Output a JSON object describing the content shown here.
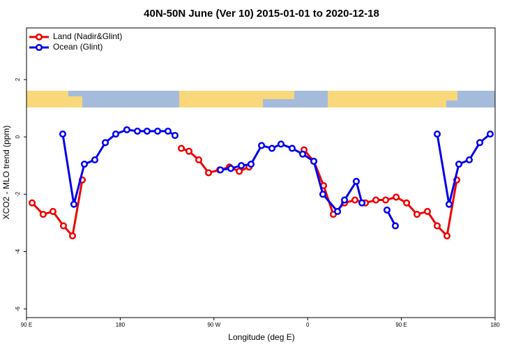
{
  "chart_data": {
    "type": "line",
    "title": "40N-50N June (Ver 10)   2015-01-01 to 2020-12-18",
    "x_label": "Longitude (deg E)",
    "y_label": "XCO2 - MLO trend (ppm)",
    "xlim": [
      90,
      540
    ],
    "xticks": [
      {
        "value": 90,
        "label": "90 E"
      },
      {
        "value": 180,
        "label": "180"
      },
      {
        "value": 270,
        "label": "90 W"
      },
      {
        "value": 360,
        "label": "0"
      },
      {
        "value": 450,
        "label": "90 E"
      },
      {
        "value": 540,
        "label": "180"
      }
    ],
    "ylim": [
      -6.3,
      3.8
    ],
    "yticks": [
      -6,
      -4,
      -2,
      0,
      2
    ],
    "legend": "top-left",
    "series": [
      {
        "name": "Land (Nadir&Glint)",
        "color": "#ee0000",
        "x": [
          95.4,
          106,
          115.4,
          125.5,
          134.2,
          143.6,
          190,
          238.7,
          246,
          255.4,
          264.8,
          275.5,
          284.9,
          294.3,
          303.7,
          330,
          356.5,
          365.9,
          375.3,
          384.6,
          395.4,
          405.4,
          415.5,
          425.5,
          434.9,
          445,
          455,
          465,
          475,
          484.4,
          493.8,
          503.2
        ],
        "values": [
          -2.3,
          -2.7,
          -2.6,
          -3.1,
          -3.45,
          -1.5,
          null,
          -0.4,
          -0.5,
          -0.8,
          -1.25,
          -1.15,
          -1.05,
          -1.2,
          -1.05,
          null,
          -0.45,
          -0.85,
          -1.7,
          -2.7,
          -2.3,
          -2.2,
          -2.3,
          -2.2,
          -2.2,
          -2.1,
          -2.3,
          -2.7,
          -2.6,
          -3.1,
          -3.45,
          -1.5
        ]
      },
      {
        "name": "Ocean (Glint)",
        "color": "#0000ee",
        "x": [
          124.8,
          135.5,
          145.6,
          155.6,
          165.7,
          175.7,
          186.4,
          196.5,
          205.8,
          215.9,
          225.9,
          232.6,
          255,
          276.2,
          286.2,
          296.3,
          305.6,
          315.7,
          325.7,
          334.4,
          345.1,
          355.2,
          365.9,
          374.6,
          388.7,
          395.4,
          406.7,
          412.1,
          425,
          436.2,
          444.2,
          465,
          484.4,
          495.8,
          505.2,
          515.2,
          525.3,
          535.3
        ],
        "values": [
          0.1,
          -2.35,
          -0.95,
          -0.8,
          -0.2,
          0.1,
          0.25,
          0.2,
          0.2,
          0.2,
          0.2,
          0.05,
          null,
          -1.15,
          -1.1,
          -1.0,
          -0.95,
          -0.3,
          -0.4,
          -0.25,
          -0.4,
          -0.6,
          -0.85,
          -2.0,
          -2.6,
          -2.2,
          -1.55,
          -2.3,
          null,
          -2.55,
          -3.1,
          null,
          0.1,
          -2.35,
          -0.95,
          -0.8,
          -0.2,
          0.1
        ]
      }
    ]
  }
}
